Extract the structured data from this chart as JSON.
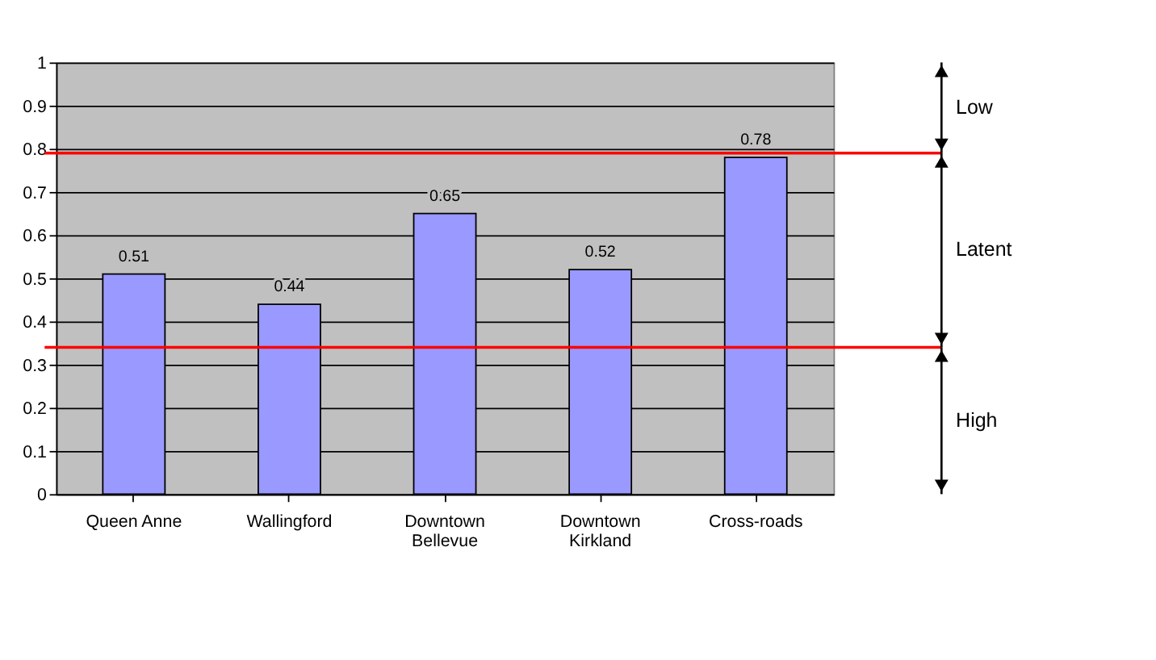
{
  "chart_data": {
    "type": "bar",
    "categories": [
      "Queen Anne",
      "Wallingford",
      "Downtown Bellevue",
      "Downtown Kirkland",
      "Cross-roads"
    ],
    "values": [
      0.51,
      0.44,
      0.65,
      0.52,
      0.78
    ],
    "color": "#9999ff",
    "data_labels": true,
    "ylim": [
      0,
      1
    ],
    "yticks": [
      0,
      0.1,
      0.2,
      0.3,
      0.4,
      0.5,
      0.6,
      0.7,
      0.8,
      0.9,
      1
    ],
    "annotations": [
      "Low",
      "Latent",
      "High"
    ],
    "grid": "y",
    "ref_lines": [
      {
        "axis": "y",
        "value": 0.79,
        "color": "#ff0000"
      },
      {
        "axis": "y",
        "value": 0.34,
        "color": "#ff0000"
      }
    ]
  }
}
